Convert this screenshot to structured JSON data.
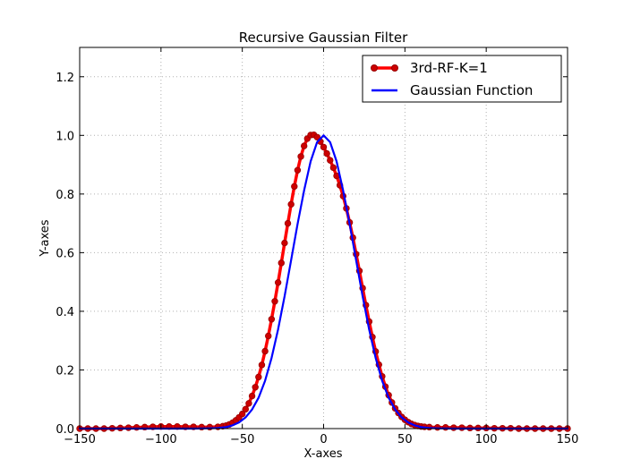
{
  "chart_data": {
    "type": "line",
    "title": "Recursive Gaussian Filter",
    "xlabel": "X-axes",
    "ylabel": "Y-axes",
    "xlim": [
      -150,
      150
    ],
    "ylim": [
      0.0,
      1.3
    ],
    "xticks": [
      -150,
      -100,
      -50,
      0,
      50,
      100,
      150
    ],
    "xtick_labels": [
      "−150",
      "−100",
      "−50",
      "0",
      "50",
      "100",
      "150"
    ],
    "yticks": [
      0.0,
      0.2,
      0.4,
      0.6,
      0.8,
      1.0,
      1.2
    ],
    "ytick_labels": [
      "0.0",
      "0.2",
      "0.4",
      "0.6",
      "0.8",
      "1.0",
      "1.2"
    ],
    "grid": true,
    "legend_position": "top-right",
    "series": [
      {
        "name": "3rd-RF-K=1",
        "color": "#ff0000",
        "marker_face": "#cc0000",
        "style": "line-with-circle-markers",
        "x": [
          -150,
          -145,
          -140,
          -135,
          -130,
          -125,
          -120,
          -115,
          -110,
          -105,
          -100,
          -95,
          -90,
          -85,
          -80,
          -75,
          -70,
          -65,
          -62,
          -60,
          -58,
          -56,
          -54,
          -52,
          -50,
          -48,
          -46,
          -44,
          -42,
          -40,
          -38,
          -36,
          -34,
          -32,
          -30,
          -28,
          -26,
          -24,
          -22,
          -20,
          -18,
          -16,
          -14,
          -12,
          -10,
          -8,
          -6,
          -4,
          -2,
          0,
          2,
          4,
          6,
          8,
          10,
          12,
          14,
          16,
          18,
          20,
          22,
          24,
          26,
          28,
          30,
          32,
          34,
          36,
          38,
          40,
          42,
          44,
          46,
          48,
          50,
          52,
          54,
          56,
          58,
          60,
          62,
          65,
          70,
          75,
          80,
          85,
          90,
          95,
          100,
          105,
          110,
          115,
          120,
          125,
          130,
          135,
          140,
          145,
          150
        ],
        "y": [
          0.0,
          0.0,
          0.0,
          0.0,
          0.001,
          0.002,
          0.003,
          0.004,
          0.005,
          0.006,
          0.007,
          0.007,
          0.007,
          0.006,
          0.006,
          0.005,
          0.005,
          0.006,
          0.008,
          0.01,
          0.014,
          0.02,
          0.028,
          0.038,
          0.05,
          0.066,
          0.086,
          0.111,
          0.141,
          0.176,
          0.217,
          0.264,
          0.316,
          0.373,
          0.434,
          0.498,
          0.565,
          0.633,
          0.7,
          0.765,
          0.826,
          0.881,
          0.928,
          0.964,
          0.989,
          1.001,
          1.002,
          0.994,
          0.979,
          0.96,
          0.938,
          0.915,
          0.89,
          0.862,
          0.83,
          0.793,
          0.751,
          0.703,
          0.651,
          0.595,
          0.538,
          0.479,
          0.421,
          0.365,
          0.312,
          0.263,
          0.218,
          0.178,
          0.143,
          0.114,
          0.089,
          0.069,
          0.053,
          0.04,
          0.03,
          0.022,
          0.016,
          0.012,
          0.009,
          0.007,
          0.006,
          0.005,
          0.004,
          0.004,
          0.003,
          0.003,
          0.002,
          0.002,
          0.002,
          0.001,
          0.001,
          0.001,
          0.0,
          0.0,
          0.0,
          0.0,
          0.0,
          0.0,
          0.0
        ]
      },
      {
        "name": "Gaussian Function",
        "color": "#0000ff",
        "style": "line",
        "x": [
          -150,
          -140,
          -130,
          -120,
          -110,
          -100,
          -90,
          -80,
          -70,
          -65,
          -60,
          -56,
          -52,
          -48,
          -44,
          -40,
          -36,
          -32,
          -28,
          -24,
          -20,
          -16,
          -12,
          -8,
          -4,
          0,
          4,
          8,
          12,
          16,
          20,
          24,
          28,
          32,
          36,
          40,
          44,
          48,
          52,
          56,
          60,
          65,
          70,
          80,
          90,
          100,
          110,
          120,
          130,
          140,
          150
        ],
        "y": [
          0.0,
          0.0,
          0.0,
          0.0,
          0.0,
          0.0,
          0.0,
          0.0,
          0.001,
          0.002,
          0.005,
          0.011,
          0.021,
          0.038,
          0.065,
          0.105,
          0.163,
          0.241,
          0.338,
          0.451,
          0.574,
          0.698,
          0.812,
          0.911,
          0.977,
          1.0,
          0.977,
          0.911,
          0.812,
          0.698,
          0.574,
          0.451,
          0.338,
          0.241,
          0.163,
          0.105,
          0.065,
          0.038,
          0.021,
          0.011,
          0.005,
          0.002,
          0.001,
          0.0,
          0.0,
          0.0,
          0.0,
          0.0,
          0.0,
          0.0,
          0.0
        ]
      }
    ]
  }
}
